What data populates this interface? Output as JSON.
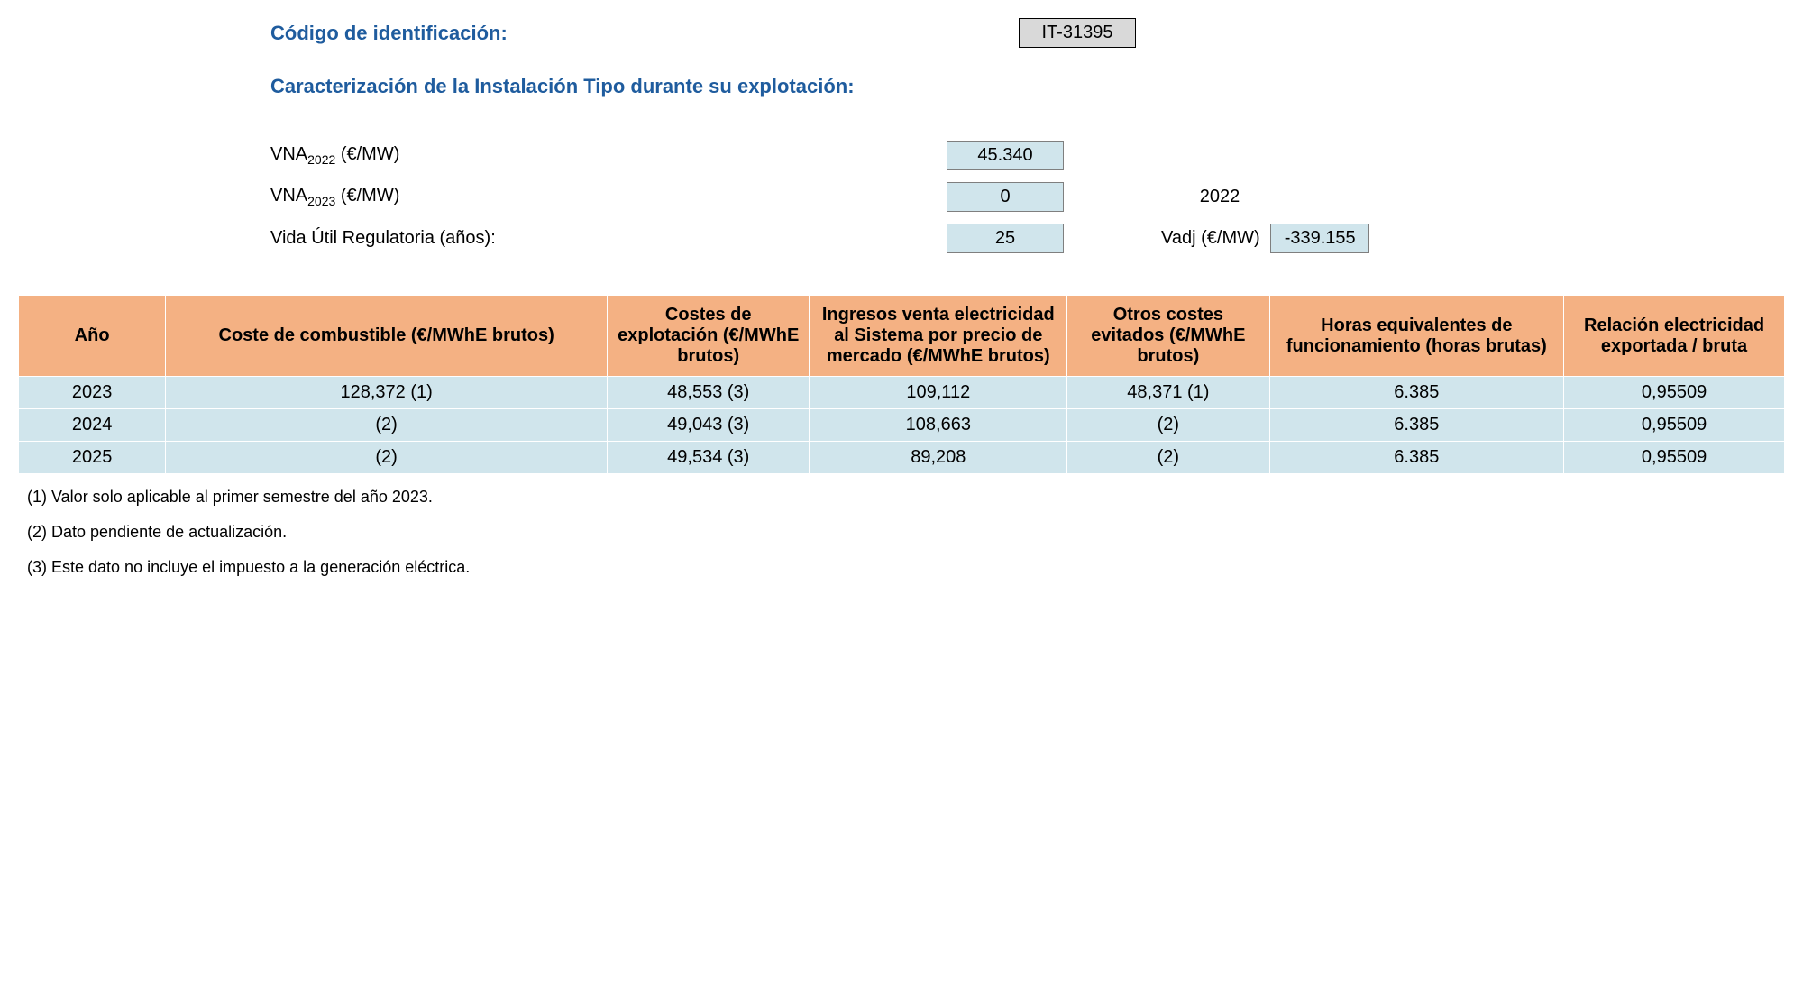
{
  "header": {
    "codigo_label": "Código de identificación:",
    "codigo_value": "IT-31395",
    "section_title": "Caracterización de la Instalación Tipo durante su explotación:"
  },
  "params": {
    "vna2022": {
      "label_prefix": "VNA",
      "label_sub": "2022",
      "label_suffix": " (€/MW)",
      "value": "45.340"
    },
    "vna2023": {
      "label_prefix": "VNA",
      "label_sub": "2023",
      "label_suffix": " (€/MW)",
      "value": "0",
      "extra_year": "2022"
    },
    "vida_util": {
      "label": "Vida Útil Regulatoria (años):",
      "value": "25",
      "vadj_label": "Vadj (€/MW)",
      "vadj_value": "-339.155"
    }
  },
  "table": {
    "columns": [
      "Año",
      "Coste de combustible (€/MWhE brutos)",
      "Costes de explotación (€/MWhE brutos)",
      "Ingresos venta electricidad al Sistema por precio de mercado (€/MWhE brutos)",
      "Otros costes evitados (€/MWhE brutos)",
      "Horas equivalentes de funcionamiento (horas brutas)",
      "Relación electricidad exportada / bruta"
    ],
    "rows": [
      [
        "2023",
        "128,372 (1)",
        "48,553 (3)",
        "109,112",
        "48,371 (1)",
        "6.385",
        "0,95509"
      ],
      [
        "2024",
        "(2)",
        "49,043 (3)",
        "108,663",
        "(2)",
        "6.385",
        "0,95509"
      ],
      [
        "2025",
        "(2)",
        "49,534 (3)",
        "89,208",
        "(2)",
        "6.385",
        "0,95509"
      ]
    ]
  },
  "footnotes": [
    "(1) Valor solo aplicable al primer semestre del año 2023.",
    "(2) Dato pendiente de actualización.",
    "(3) Este dato no incluye el impuesto a la generación eléctrica."
  ]
}
